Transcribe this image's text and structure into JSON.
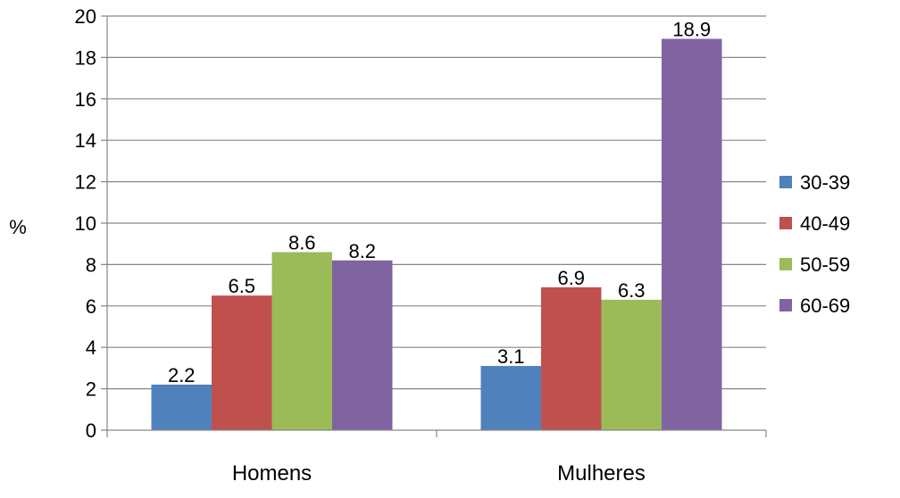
{
  "chart_data": {
    "type": "bar",
    "title": "",
    "xlabel": "",
    "ylabel": "%",
    "ylim": [
      0,
      20
    ],
    "ytick_step": 2,
    "categories": [
      "Homens",
      "Mulheres"
    ],
    "series": [
      {
        "name": "30-39",
        "color": "#4F81BD",
        "values": [
          2.2,
          3.1
        ]
      },
      {
        "name": "40-49",
        "color": "#C0504D",
        "values": [
          6.5,
          6.9
        ]
      },
      {
        "name": "50-59",
        "color": "#9BBB59",
        "values": [
          8.6,
          6.3
        ]
      },
      {
        "name": "60-69",
        "color": "#8064A2",
        "values": [
          8.2,
          18.9
        ]
      }
    ],
    "grid": true,
    "legend_position": "right"
  }
}
